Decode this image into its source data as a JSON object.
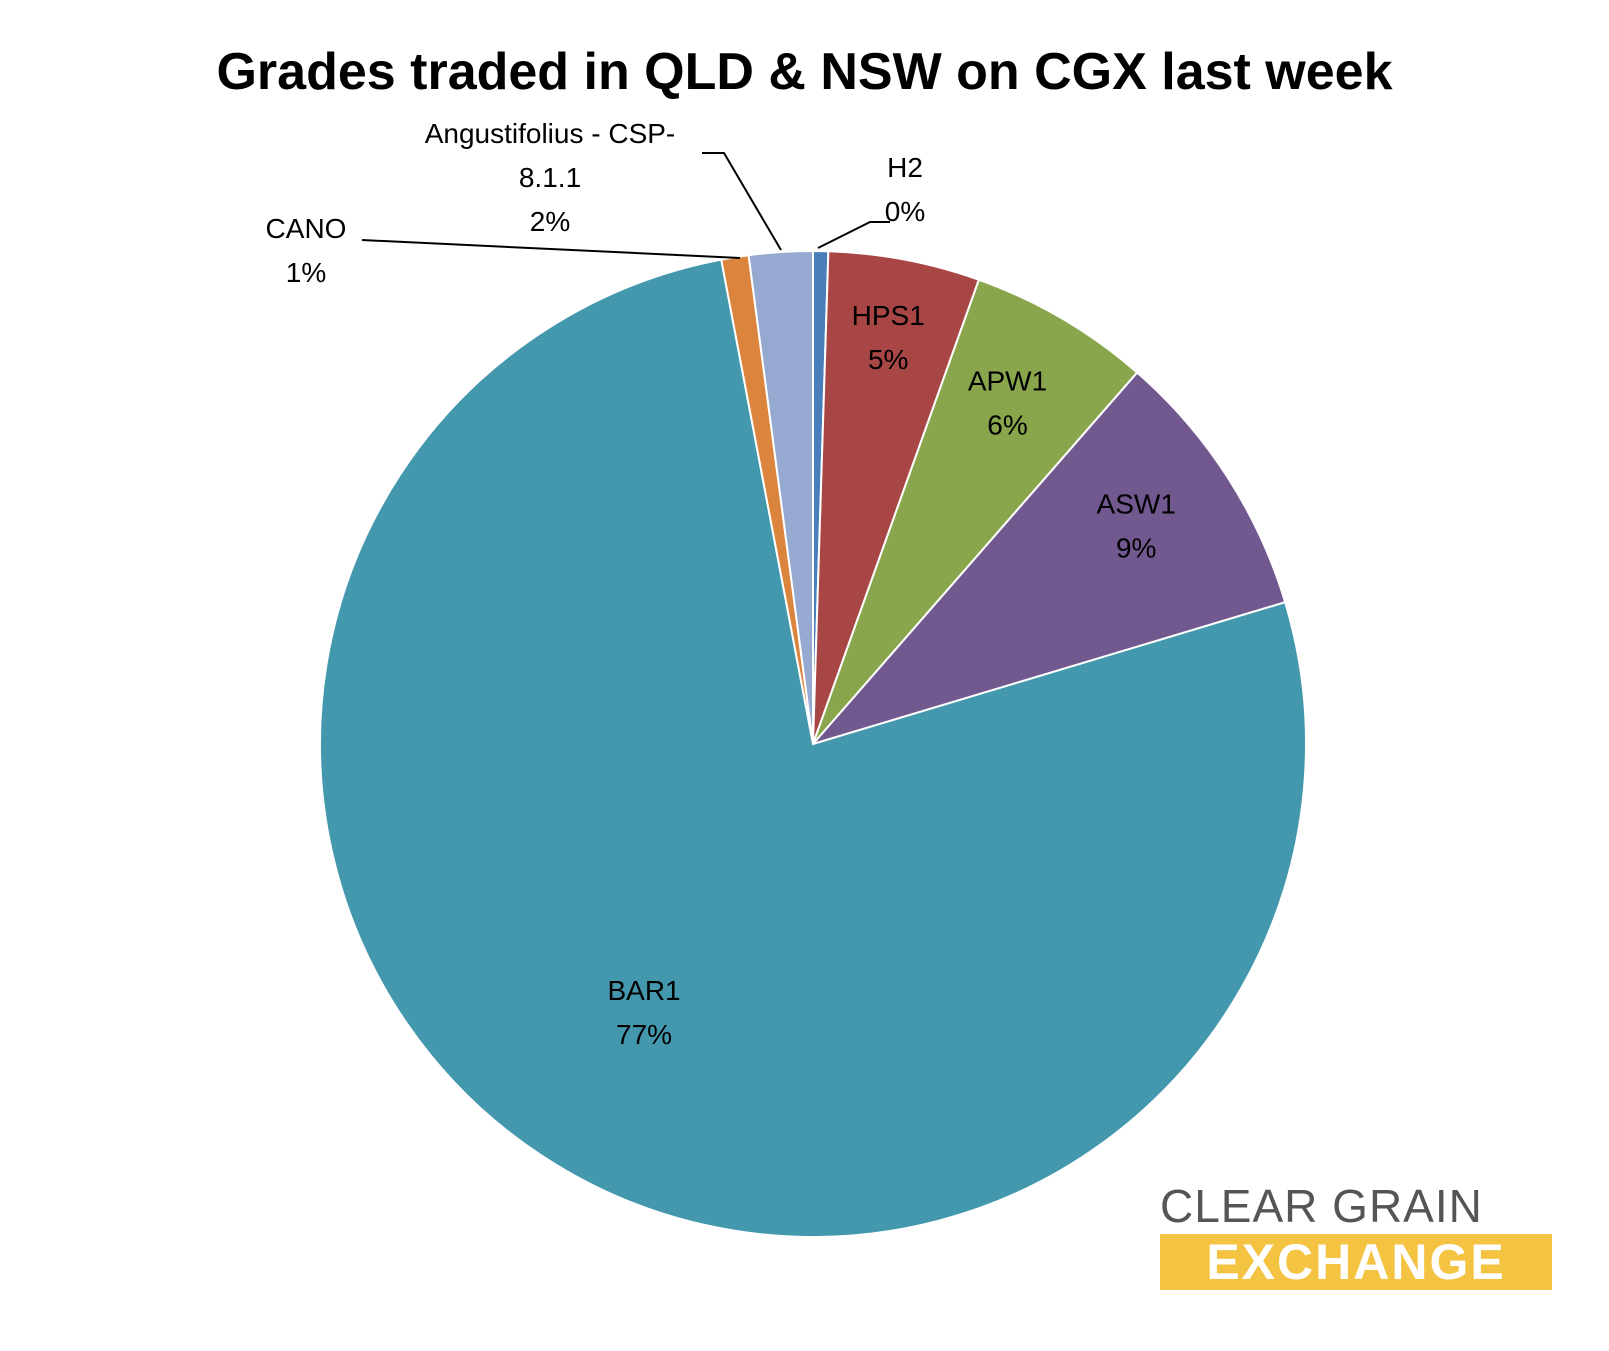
{
  "chart_data": {
    "type": "pie",
    "title": "Grades traded in QLD & NSW on CGX last week",
    "slices": [
      {
        "label": "H2",
        "percent_label": "0%",
        "value": 0.5,
        "color": "#4a7ebb"
      },
      {
        "label": "HPS1",
        "percent_label": "5%",
        "value": 5,
        "color": "#a84646"
      },
      {
        "label": "APW1",
        "percent_label": "6%",
        "value": 6,
        "color": "#8aa64d"
      },
      {
        "label": "ASW1",
        "percent_label": "9%",
        "value": 9,
        "color": "#71588f"
      },
      {
        "label": "BAR1",
        "percent_label": "77%",
        "value": 77.2,
        "color": "#4498ae"
      },
      {
        "label": "CANO",
        "percent_label": "1%",
        "value": 0.9,
        "color": "#db843d"
      },
      {
        "label_lines": [
          "Angustifolius - CSP-",
          "8.1.1"
        ],
        "percent_label": "2%",
        "value": 2.1,
        "color": "#95a9d1"
      }
    ]
  },
  "logo": {
    "line1": "CLEAR GRAIN",
    "line2": "EXCHANGE"
  }
}
